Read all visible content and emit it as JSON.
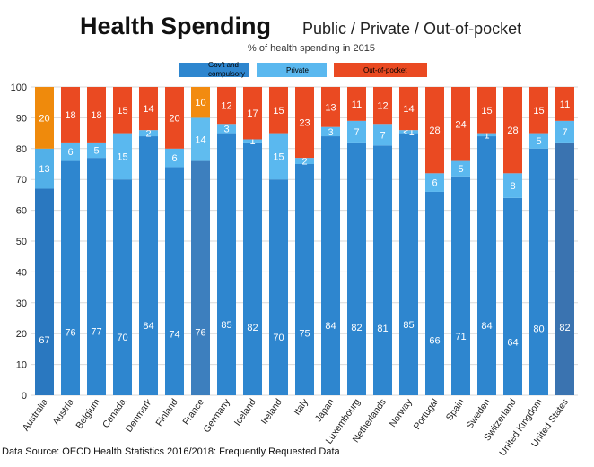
{
  "chart_data": {
    "type": "bar",
    "stacked": true,
    "title": "Health Spending",
    "subtitle": "Public / Private / Out-of-pocket",
    "caption": "% of health spending in 2015",
    "ylim": [
      0,
      100
    ],
    "yticks": [
      0,
      10,
      20,
      30,
      40,
      50,
      60,
      70,
      80,
      90,
      100
    ],
    "grid": true,
    "legend_position": "top",
    "categories": [
      "Australia",
      "Austria",
      "Belgium",
      "Canada",
      "Denmark",
      "Finland",
      "France",
      "Germany",
      "Iceland",
      "Ireland",
      "Italy",
      "Japan",
      "Luxembourg",
      "Netherlands",
      "Norway",
      "Portugal",
      "Spain",
      "Sweden",
      "Switzerland",
      "United Kingdom",
      "United States"
    ],
    "series": [
      {
        "name": "Gov't and compulsory",
        "color": "#2e86cf",
        "values": [
          67,
          76,
          77,
          70,
          84,
          74,
          76,
          85,
          82,
          70,
          75,
          84,
          82,
          81,
          85,
          66,
          71,
          84,
          64,
          80,
          82
        ],
        "labels": [
          "67",
          "76",
          "77",
          "70",
          "84",
          "74",
          "76",
          "85",
          "82",
          "70",
          "75",
          "84",
          "82",
          "81",
          "85",
          "66",
          "71",
          "84",
          "64",
          "80",
          "82"
        ]
      },
      {
        "name": "Private",
        "color": "#5ab8ef",
        "values": [
          13,
          6,
          5,
          15,
          2,
          6,
          14,
          3,
          1,
          15,
          2,
          3,
          7,
          7,
          1,
          6,
          5,
          1,
          8,
          5,
          7
        ],
        "labels": [
          "13",
          "6",
          "5",
          "15",
          "2",
          "6",
          "14",
          "3",
          "1",
          "15",
          "2",
          "3",
          "7",
          "7",
          "<1",
          "6",
          "5",
          "1",
          "8",
          "5",
          "7"
        ]
      },
      {
        "name": "Out-of-pocket",
        "color": "#ea4a22",
        "values": [
          20,
          18,
          18,
          15,
          14,
          20,
          10,
          12,
          17,
          15,
          23,
          13,
          11,
          12,
          14,
          28,
          24,
          15,
          28,
          15,
          11
        ],
        "labels": [
          "20",
          "18",
          "18",
          "15",
          "14",
          "20",
          "10",
          "12",
          "17",
          "15",
          "23",
          "13",
          "11",
          "12",
          "14",
          "28",
          "24",
          "15",
          "28",
          "15",
          "11"
        ]
      }
    ],
    "highlight_colors": {
      "australia_oop": "#ef8a0c",
      "australia_gov": "#2a78c0",
      "australia_priv": "#52b0e8",
      "france_oop": "#f28b10",
      "france_gov": "#3d7fbe",
      "france_priv": "#60bcef",
      "us_gov": "#3a73b0"
    }
  },
  "source_note": "Data Source: OECD Health Statistics 2016/2018: Frequently Requested Data"
}
